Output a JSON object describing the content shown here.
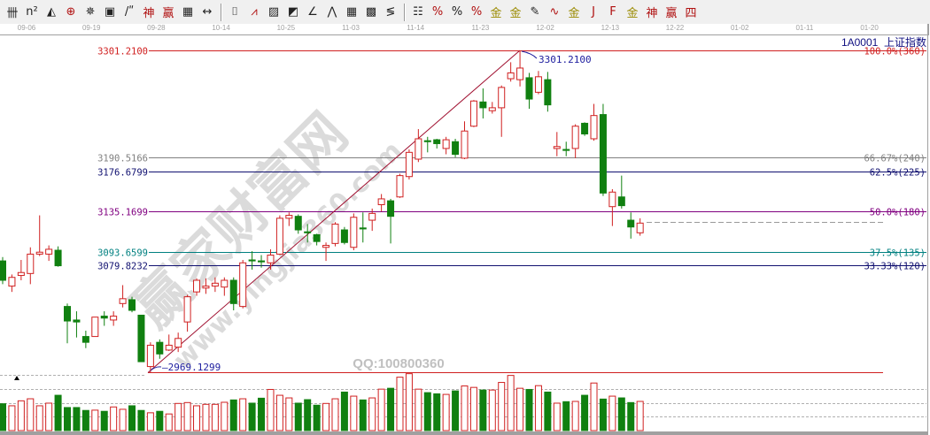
{
  "toolbar": {
    "groups": [
      [
        "grid-lines-icon",
        "n-squared-icon",
        "triangle-pen-icon",
        "crosshair-circle-icon",
        "radial-target-icon",
        "concentric-box-icon",
        "angle-lines-icon",
        "god-line-icon",
        "win-line-icon",
        "time-grid-icon",
        "span-arrows-icon"
      ],
      [
        "box-select-icon",
        "fan-lines-icon",
        "gann-box-icon",
        "gann-fan-icon",
        "angle-icon",
        "wave-icon",
        "grid-box-icon",
        "grid-box-dark-icon",
        "parallel-lines-icon"
      ],
      [
        "table-icon",
        "percent-fib-icon",
        "percent-icon",
        "percent-lines-icon",
        "gold-circle-icon",
        "gold-lines-icon",
        "pen-marker-icon",
        "wave-cycle-icon",
        "gold-box-icon",
        "j-fan-icon",
        "f-fan-icon",
        "gold-fan-icon",
        "shen-fan-icon",
        "win-fan-icon",
        "four-fan-icon"
      ]
    ]
  },
  "x_axis_dates": [
    "09-06",
    "09-19",
    "09-28",
    "10-14",
    "10-25",
    "11-03",
    "11-14",
    "11-23",
    "12-02",
    "12-13",
    "12-22",
    "01-02",
    "01-11",
    "01-20"
  ],
  "symbol": {
    "code": "1A0001",
    "name": "上证指数"
  },
  "watermark": {
    "site_cn": "赢家财富网",
    "site_url": "www.yingjia360.com",
    "qq": "QQ:100800360"
  },
  "colors": {
    "up": "#d02020",
    "down": "#108010",
    "high_line": "#d02020",
    "label_blue": "#2020a0"
  },
  "chart_data": {
    "type": "candlestick",
    "title": "",
    "ylim": [
      2960,
      3310
    ],
    "high_label": "3301.2100",
    "low_label": "2969.1299",
    "fib_levels": [
      {
        "price": "3301.2100",
        "ratio": "100.0%(360)",
        "color": "#d02020"
      },
      {
        "price": "3190.5166",
        "ratio": "66.67%(240)",
        "color": "#808080"
      },
      {
        "price": "3176.6799",
        "ratio": "62.5%(225)",
        "color": "#101070"
      },
      {
        "price": "3135.1699",
        "ratio": "50.0%(180)",
        "color": "#800080"
      },
      {
        "price": "3093.6599",
        "ratio": "37.5%(135)",
        "color": "#008080"
      },
      {
        "price": "3079.8232",
        "ratio": "33.33%(120)",
        "color": "#101070"
      }
    ],
    "ohlc": [
      [
        3084,
        3088,
        3060,
        3064
      ],
      [
        3058,
        3070,
        3052,
        3067
      ],
      [
        3069,
        3085,
        3064,
        3072
      ],
      [
        3071,
        3098,
        3060,
        3091
      ],
      [
        3091,
        3131,
        3089,
        3093
      ],
      [
        3091,
        3100,
        3084,
        3096
      ],
      [
        3095,
        3099,
        3078,
        3079
      ],
      [
        3037,
        3040,
        2999,
        3022
      ],
      [
        3023,
        3032,
        3005,
        3021
      ],
      [
        3006,
        3012,
        2994,
        3000
      ],
      [
        3006,
        3026,
        3006,
        3026
      ],
      [
        3027,
        3032,
        3017,
        3025
      ],
      [
        3023,
        3032,
        3017,
        3027
      ],
      [
        3040,
        3059,
        3036,
        3045
      ],
      [
        3044,
        3047,
        3031,
        3033
      ],
      [
        3028,
        3028,
        2980,
        2980
      ],
      [
        2975,
        3000,
        2969.13,
        2997
      ],
      [
        3000,
        3003,
        2983,
        2988
      ],
      [
        2992,
        3008,
        2991,
        2997
      ],
      [
        2995,
        3010,
        2990,
        3004
      ],
      [
        3021,
        3049,
        3011,
        3047
      ],
      [
        3052,
        3066,
        3048,
        3064
      ],
      [
        3056,
        3066,
        3050,
        3058
      ],
      [
        3058,
        3067,
        3052,
        3061
      ],
      [
        3057,
        3067,
        3048,
        3064
      ],
      [
        3064,
        3067,
        3033,
        3040
      ],
      [
        3037,
        3085,
        3035,
        3082
      ],
      [
        3085,
        3094,
        3075,
        3084
      ],
      [
        3084,
        3090,
        3077,
        3083
      ],
      [
        3082,
        3096,
        3075,
        3090
      ],
      [
        3091,
        3131,
        3090,
        3128
      ],
      [
        3128,
        3134,
        3120,
        3131
      ],
      [
        3130,
        3132,
        3112,
        3116
      ],
      [
        3114,
        3122,
        3103,
        3113
      ],
      [
        3111,
        3112,
        3100,
        3104
      ],
      [
        3098,
        3103,
        3084,
        3100
      ],
      [
        3102,
        3124,
        3099,
        3122
      ],
      [
        3116,
        3119,
        3101,
        3103
      ],
      [
        3098,
        3133,
        3095,
        3129
      ],
      [
        3118,
        3134,
        3103,
        3117
      ],
      [
        3126,
        3138,
        3115,
        3133
      ],
      [
        3142,
        3153,
        3135,
        3148
      ],
      [
        3146,
        3148,
        3102,
        3130
      ],
      [
        3150,
        3174,
        3149,
        3172
      ],
      [
        3171,
        3199,
        3168,
        3196
      ],
      [
        3189,
        3220,
        3186,
        3210
      ],
      [
        3208,
        3212,
        3196,
        3207
      ],
      [
        3209,
        3210,
        3200,
        3205
      ],
      [
        3200,
        3212,
        3194,
        3209
      ],
      [
        3207,
        3210,
        3191,
        3194
      ],
      [
        3190,
        3228,
        3189,
        3218
      ],
      [
        3223,
        3250,
        3222,
        3249
      ],
      [
        3248,
        3262,
        3231,
        3242
      ],
      [
        3239,
        3248,
        3236,
        3242
      ],
      [
        3242,
        3265,
        3212,
        3263
      ],
      [
        3272,
        3289,
        3269,
        3278
      ],
      [
        3271,
        3301.21,
        3264,
        3283
      ],
      [
        3273,
        3278,
        3241,
        3251
      ],
      [
        3258,
        3280,
        3256,
        3274
      ],
      [
        3271,
        3279,
        3238,
        3245
      ],
      [
        3200,
        3217,
        3192,
        3202
      ],
      [
        3199,
        3207,
        3192,
        3198
      ],
      [
        3200,
        3225,
        3190,
        3223
      ],
      [
        3226,
        3227,
        3213,
        3215
      ],
      [
        3210,
        3246,
        3208,
        3234
      ],
      [
        3235,
        3246,
        3151,
        3154
      ],
      [
        3140,
        3158,
        3120,
        3155
      ],
      [
        3150,
        3172,
        3138,
        3141
      ],
      [
        3126,
        3134,
        3107,
        3119
      ],
      [
        3113,
        3128,
        3110,
        3123
      ]
    ],
    "volume_relative": [
      92,
      85,
      102,
      109,
      85,
      94,
      121,
      79,
      79,
      69,
      70,
      66,
      81,
      73,
      85,
      69,
      61,
      66,
      57,
      93,
      96,
      85,
      90,
      90,
      97,
      105,
      109,
      94,
      111,
      141,
      121,
      112,
      94,
      106,
      87,
      93,
      109,
      132,
      118,
      105,
      112,
      142,
      145,
      183,
      195,
      142,
      130,
      126,
      124,
      136,
      153,
      148,
      139,
      139,
      165,
      189,
      145,
      141,
      154,
      132,
      94,
      99,
      100,
      121,
      163,
      108,
      118,
      112,
      96,
      100
    ]
  }
}
